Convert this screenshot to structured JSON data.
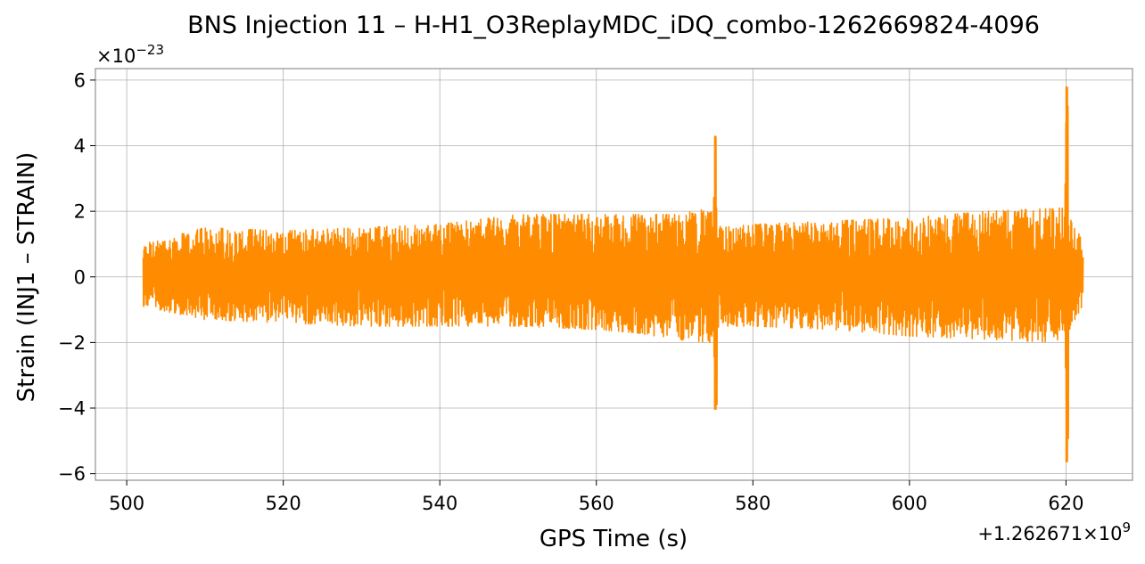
{
  "chart_data": {
    "type": "line",
    "title": "BNS Injection 11 – H-H1_O3ReplayMDC_iDQ_combo-1262669824-4096",
    "xlabel": "GPS Time (s)",
    "ylabel": "Strain (INJ1 – STRAIN)",
    "x_offset_label": "+1.262671×10",
    "x_offset_exp": "9",
    "y_scale_label": "×10",
    "y_scale_exp": "−23",
    "xlim": [
      496,
      628.5
    ],
    "ylim": [
      -6.2,
      6.35
    ],
    "x_ticks": [
      500,
      520,
      540,
      560,
      580,
      600,
      620
    ],
    "x_tick_labels": [
      "500",
      "520",
      "540",
      "560",
      "580",
      "600",
      "620"
    ],
    "y_ticks": [
      -6,
      -4,
      -2,
      0,
      2,
      4,
      6
    ],
    "y_tick_labels": [
      "−6",
      "−4",
      "−2",
      "0",
      "2",
      "4",
      "6"
    ],
    "grid": true,
    "line_color": "#ff8c00",
    "series": [
      {
        "x_range": [
          502.1,
          622.2
        ],
        "envelope": [
          {
            "x": 502.1,
            "min": -0.9,
            "max": 1.0
          },
          {
            "x": 510,
            "min": -1.3,
            "max": 1.5
          },
          {
            "x": 520,
            "min": -1.4,
            "max": 1.4
          },
          {
            "x": 530,
            "min": -1.5,
            "max": 1.5
          },
          {
            "x": 540,
            "min": -1.5,
            "max": 1.6
          },
          {
            "x": 550,
            "min": -1.5,
            "max": 1.9
          },
          {
            "x": 560,
            "min": -1.6,
            "max": 1.9
          },
          {
            "x": 565,
            "min": -1.7,
            "max": 1.9
          },
          {
            "x": 570,
            "min": -1.9,
            "max": 1.9
          },
          {
            "x": 574.5,
            "min": -2.0,
            "max": 2.1
          },
          {
            "x": 576,
            "min": -1.5,
            "max": 1.5
          },
          {
            "x": 580,
            "min": -1.5,
            "max": 1.6
          },
          {
            "x": 590,
            "min": -1.6,
            "max": 1.7
          },
          {
            "x": 600,
            "min": -1.8,
            "max": 1.8
          },
          {
            "x": 610,
            "min": -1.9,
            "max": 2.0
          },
          {
            "x": 619.5,
            "min": -2.0,
            "max": 2.1
          },
          {
            "x": 622.2,
            "min": -0.9,
            "max": 1.2
          }
        ],
        "spikes": [
          {
            "x": 575.2,
            "min": -4.05,
            "max": 4.3
          },
          {
            "x": 620.1,
            "min": -5.65,
            "max": 5.8
          }
        ]
      }
    ]
  }
}
